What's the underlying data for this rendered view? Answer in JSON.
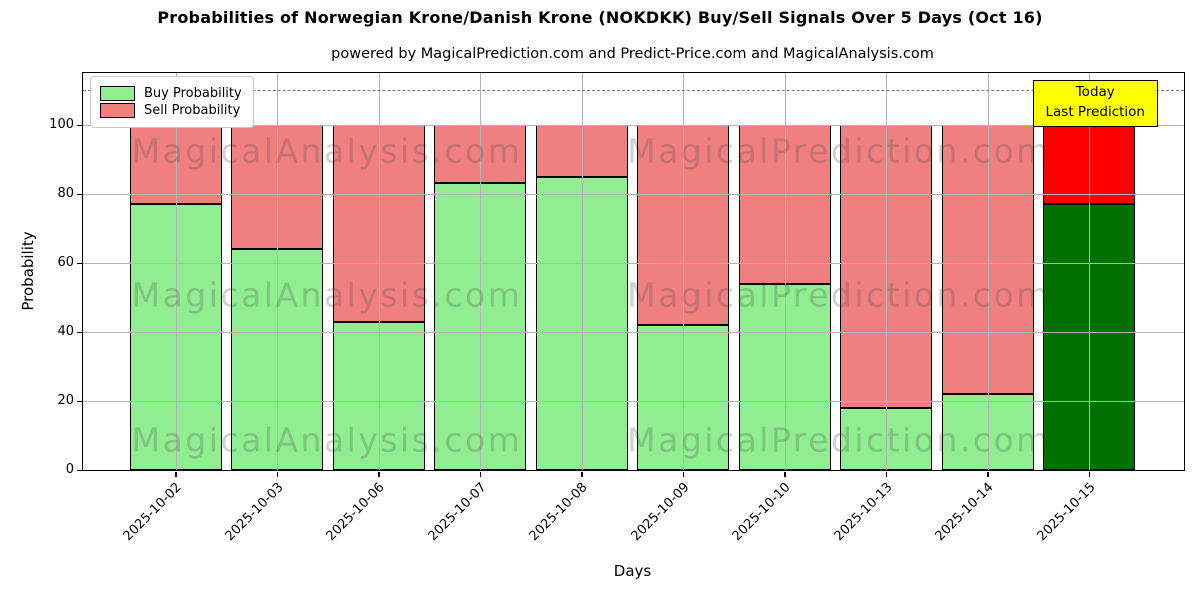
{
  "chart_data": {
    "type": "bar",
    "stacked": true,
    "title": "Probabilities of Norwegian Krone/Danish Krone (NOKDKK) Buy/Sell Signals Over 5 Days (Oct 16)",
    "subtitle": "powered by MagicalPrediction.com and Predict-Price.com and MagicalAnalysis.com",
    "xlabel": "Days",
    "ylabel": "Probability",
    "categories": [
      "2025-10-02",
      "2025-10-03",
      "2025-10-06",
      "2025-10-07",
      "2025-10-08",
      "2025-10-09",
      "2025-10-10",
      "2025-10-13",
      "2025-10-14",
      "2025-10-15"
    ],
    "series": [
      {
        "name": "Buy Probability",
        "color": "#90ee90",
        "today_color": "#007000",
        "values": [
          77,
          64,
          43,
          83,
          85,
          42,
          54,
          18,
          22,
          77
        ]
      },
      {
        "name": "Sell Probability",
        "color": "#f08080",
        "today_color": "#ff0000",
        "values": [
          23,
          36,
          57,
          17,
          15,
          58,
          46,
          82,
          78,
          23
        ]
      }
    ],
    "today_index": 9,
    "ylim": [
      0,
      115
    ],
    "yticks": [
      0,
      20,
      40,
      60,
      80,
      100
    ],
    "dashed_line_y": 110,
    "grid": true,
    "legend_position": "upper left",
    "bar_edge_color": "#000000",
    "annotation": {
      "line1": "Today",
      "line2": "Last Prediction",
      "bg_color": "#ffff00"
    },
    "watermarks": [
      "MagicalAnalysis.com",
      "MagicalPrediction.com"
    ]
  }
}
